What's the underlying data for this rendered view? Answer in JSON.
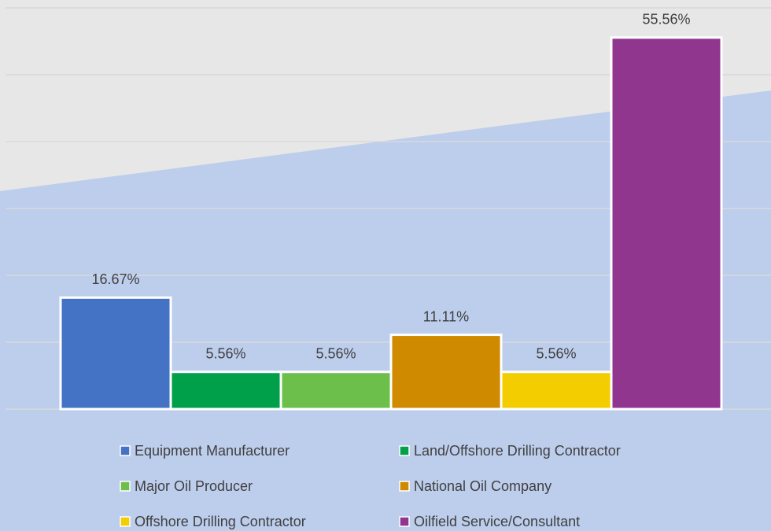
{
  "chart_data": {
    "type": "bar",
    "categories": [
      "Equipment Manufacturer",
      "Land/Offshore Drilling Contractor",
      "Major Oil Producer",
      "National Oil Company",
      "Offshore Drilling Contractor",
      "Oilfield Service/Consultant"
    ],
    "values": [
      16.67,
      5.56,
      5.56,
      11.11,
      5.56,
      55.56
    ],
    "value_labels": [
      "16.67%",
      "5.56%",
      "5.56%",
      "11.11%",
      "5.56%",
      "55.56%"
    ],
    "colors": [
      "#4472c4",
      "#00a04a",
      "#6dbf4b",
      "#cf8a00",
      "#f4cd00",
      "#91368f"
    ],
    "ylim": [
      0,
      60
    ],
    "yticks": [
      0,
      10,
      20,
      30,
      40,
      50,
      60
    ],
    "grid": true
  }
}
